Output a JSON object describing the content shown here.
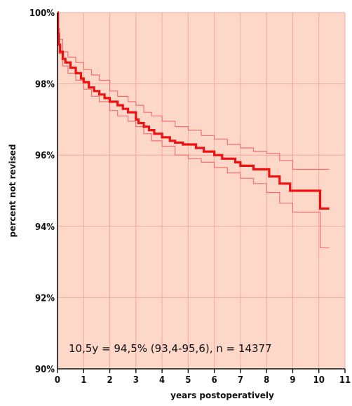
{
  "chart_data": {
    "type": "line",
    "title": "",
    "xlabel": "years postoperatively",
    "ylabel": "percent not revised",
    "xlim": [
      0,
      11
    ],
    "ylim": [
      90,
      100
    ],
    "x_ticks": [
      0,
      1,
      2,
      3,
      4,
      5,
      6,
      7,
      8,
      9,
      10,
      11
    ],
    "x_tick_labels": [
      "0",
      "1",
      "2",
      "3",
      "4",
      "5",
      "6",
      "7",
      "8",
      "9",
      "10",
      "11"
    ],
    "y_ticks": [
      90,
      92,
      94,
      96,
      98,
      100
    ],
    "y_tick_labels": [
      "90%",
      "92%",
      "94%",
      "96%",
      "98%",
      "100%"
    ],
    "grid": true,
    "background_color": "#fdd7c8",
    "grid_color": "#f4aaa0",
    "annotation": "10,5y = 94,5% (93,4-95,6), n = 14377",
    "series": [
      {
        "role": "estimate",
        "color": "#ee1111",
        "points": [
          [
            0,
            100
          ],
          [
            0.02,
            99.4
          ],
          [
            0.05,
            99.1
          ],
          [
            0.1,
            98.9
          ],
          [
            0.2,
            98.7
          ],
          [
            0.3,
            98.6
          ],
          [
            0.5,
            98.45
          ],
          [
            0.7,
            98.3
          ],
          [
            0.9,
            98.15
          ],
          [
            1.0,
            98.05
          ],
          [
            1.2,
            97.9
          ],
          [
            1.4,
            97.8
          ],
          [
            1.6,
            97.7
          ],
          [
            1.8,
            97.6
          ],
          [
            2.0,
            97.5
          ],
          [
            2.3,
            97.4
          ],
          [
            2.5,
            97.3
          ],
          [
            2.7,
            97.2
          ],
          [
            3.0,
            97.0
          ],
          [
            3.1,
            96.9
          ],
          [
            3.3,
            96.8
          ],
          [
            3.5,
            96.7
          ],
          [
            3.7,
            96.6
          ],
          [
            4.0,
            96.5
          ],
          [
            4.3,
            96.4
          ],
          [
            4.5,
            96.35
          ],
          [
            4.8,
            96.3
          ],
          [
            5.3,
            96.2
          ],
          [
            5.6,
            96.1
          ],
          [
            6.0,
            96.0
          ],
          [
            6.3,
            95.9
          ],
          [
            6.8,
            95.8
          ],
          [
            7.0,
            95.7
          ],
          [
            7.5,
            95.6
          ],
          [
            8.1,
            95.4
          ],
          [
            8.5,
            95.2
          ],
          [
            8.9,
            95.0
          ],
          [
            10.0,
            95.0
          ],
          [
            10.05,
            94.5
          ],
          [
            10.4,
            94.5
          ]
        ]
      },
      {
        "role": "upper-ci",
        "color": "#f47070",
        "points": [
          [
            0,
            100
          ],
          [
            0.03,
            99.55
          ],
          [
            0.08,
            99.25
          ],
          [
            0.2,
            98.9
          ],
          [
            0.4,
            98.75
          ],
          [
            0.7,
            98.6
          ],
          [
            1.0,
            98.4
          ],
          [
            1.3,
            98.25
          ],
          [
            1.6,
            98.1
          ],
          [
            2.0,
            97.8
          ],
          [
            2.3,
            97.65
          ],
          [
            2.7,
            97.5
          ],
          [
            3.0,
            97.4
          ],
          [
            3.3,
            97.2
          ],
          [
            3.6,
            97.1
          ],
          [
            4.0,
            96.95
          ],
          [
            4.5,
            96.8
          ],
          [
            5.0,
            96.7
          ],
          [
            5.5,
            96.55
          ],
          [
            6.0,
            96.45
          ],
          [
            6.5,
            96.3
          ],
          [
            7.0,
            96.2
          ],
          [
            7.5,
            96.1
          ],
          [
            8.0,
            96.05
          ],
          [
            8.5,
            95.85
          ],
          [
            9.0,
            95.6
          ],
          [
            10.0,
            95.6
          ],
          [
            10.4,
            95.6
          ]
        ]
      },
      {
        "role": "lower-ci",
        "color": "#f47070",
        "points": [
          [
            0,
            100
          ],
          [
            0.02,
            99.1
          ],
          [
            0.06,
            98.85
          ],
          [
            0.2,
            98.5
          ],
          [
            0.4,
            98.3
          ],
          [
            0.7,
            98.1
          ],
          [
            1.0,
            97.85
          ],
          [
            1.3,
            97.65
          ],
          [
            1.6,
            97.5
          ],
          [
            2.0,
            97.25
          ],
          [
            2.3,
            97.1
          ],
          [
            2.7,
            96.95
          ],
          [
            3.0,
            96.8
          ],
          [
            3.3,
            96.6
          ],
          [
            3.6,
            96.4
          ],
          [
            4.0,
            96.25
          ],
          [
            4.5,
            96.0
          ],
          [
            5.0,
            95.9
          ],
          [
            5.5,
            95.8
          ],
          [
            6.0,
            95.65
          ],
          [
            6.5,
            95.5
          ],
          [
            7.0,
            95.35
          ],
          [
            7.5,
            95.2
          ],
          [
            8.0,
            94.95
          ],
          [
            8.5,
            94.65
          ],
          [
            9.0,
            94.4
          ],
          [
            10.0,
            94.4
          ],
          [
            10.05,
            93.4
          ],
          [
            10.4,
            93.4
          ]
        ]
      }
    ]
  }
}
